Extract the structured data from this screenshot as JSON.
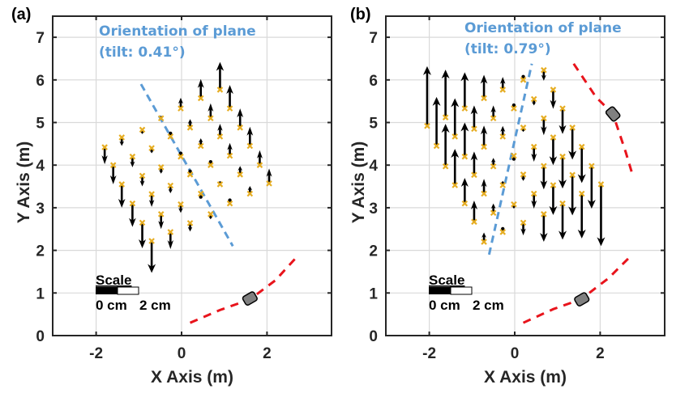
{
  "chart_data": [
    {
      "type": "scatter",
      "panel_label": "(a)",
      "title": "",
      "xlabel": "X Axis  (m)",
      "ylabel": "Y Axis  (m)",
      "xlim": [
        -3,
        3.5
      ],
      "ylim": [
        0,
        7.5
      ],
      "xticks": [
        -2,
        0,
        2
      ],
      "xtick_labels": [
        "-2",
        "0",
        "2"
      ],
      "yticks": [
        0,
        1,
        2,
        3,
        4,
        5,
        6,
        7
      ],
      "ytick_labels": [
        "0",
        "1",
        "2",
        "3",
        "4",
        "5",
        "6",
        "7"
      ],
      "grid": true,
      "annotation": {
        "line1": "Orientation of plane",
        "line2": "(tilt: 0.41°)",
        "color": "#5b9bd5"
      },
      "plane_line": {
        "x": [
          -0.95,
          1.2
        ],
        "y": [
          5.9,
          2.1
        ],
        "color": "#5b9bd5"
      },
      "trajectory": {
        "x": [
          0.2,
          0.9,
          1.6,
          2.2,
          2.7
        ],
        "y": [
          0.3,
          0.6,
          0.85,
          1.3,
          1.85
        ],
        "color": "#e8141c"
      },
      "vehicle": {
        "x": 1.6,
        "y": 0.87,
        "angle_deg": -30
      },
      "scale_bar": {
        "title": "Scale",
        "left_label": "0 cm",
        "right_label": "2 cm"
      },
      "marker_color": "#e6ad22",
      "points": [
        {
          "x": -1.8,
          "y": 4.42,
          "dy": -0.4
        },
        {
          "x": -1.6,
          "y": 4.0,
          "dy": -0.45
        },
        {
          "x": -1.4,
          "y": 3.55,
          "dy": -0.55
        },
        {
          "x": -1.15,
          "y": 3.1,
          "dy": -0.55
        },
        {
          "x": -0.92,
          "y": 2.65,
          "dy": -0.6
        },
        {
          "x": -0.7,
          "y": 2.22,
          "dy": -0.75
        },
        {
          "x": -1.4,
          "y": 4.65,
          "dy": -0.2
        },
        {
          "x": -1.15,
          "y": 4.2,
          "dy": -0.25
        },
        {
          "x": -0.92,
          "y": 3.75,
          "dy": -0.25
        },
        {
          "x": -0.7,
          "y": 3.32,
          "dy": -0.3
        },
        {
          "x": -0.48,
          "y": 2.85,
          "dy": -0.35
        },
        {
          "x": -0.26,
          "y": 2.43,
          "dy": -0.4
        },
        {
          "x": -0.92,
          "y": 4.83,
          "dy": -0.1
        },
        {
          "x": -0.7,
          "y": 4.4,
          "dy": -0.12
        },
        {
          "x": -0.48,
          "y": 3.95,
          "dy": -0.15
        },
        {
          "x": -0.26,
          "y": 3.52,
          "dy": -0.18
        },
        {
          "x": -0.02,
          "y": 3.08,
          "dy": -0.2
        },
        {
          "x": 0.2,
          "y": 2.64,
          "dy": -0.2
        },
        {
          "x": -0.48,
          "y": 5.1,
          "dy": 0.06
        },
        {
          "x": -0.26,
          "y": 4.67,
          "dy": 0.0
        },
        {
          "x": -0.02,
          "y": 4.2,
          "dy": 0.0
        },
        {
          "x": 0.2,
          "y": 3.78,
          "dy": 0.0
        },
        {
          "x": 0.45,
          "y": 3.33,
          "dy": -0.05
        },
        {
          "x": 0.68,
          "y": 2.85,
          "dy": -0.12
        },
        {
          "x": -0.02,
          "y": 5.33,
          "dy": 0.25
        },
        {
          "x": 0.2,
          "y": 4.88,
          "dy": 0.2
        },
        {
          "x": 0.45,
          "y": 4.45,
          "dy": 0.18
        },
        {
          "x": 0.68,
          "y": 4.0,
          "dy": 0.05
        },
        {
          "x": 0.9,
          "y": 3.55,
          "dy": 0.08
        },
        {
          "x": 1.13,
          "y": 3.1,
          "dy": 0.0
        },
        {
          "x": 0.45,
          "y": 5.57,
          "dy": 0.45
        },
        {
          "x": 0.68,
          "y": 5.1,
          "dy": 0.35
        },
        {
          "x": 0.9,
          "y": 4.67,
          "dy": 0.3
        },
        {
          "x": 1.13,
          "y": 4.22,
          "dy": 0.3
        },
        {
          "x": 1.37,
          "y": 3.78,
          "dy": 0.2
        },
        {
          "x": 1.6,
          "y": 3.33,
          "dy": 0.18
        },
        {
          "x": 0.9,
          "y": 5.77,
          "dy": 0.65
        },
        {
          "x": 1.13,
          "y": 5.33,
          "dy": 0.55
        },
        {
          "x": 1.37,
          "y": 4.88,
          "dy": 0.45
        },
        {
          "x": 1.6,
          "y": 4.45,
          "dy": 0.45
        },
        {
          "x": 1.83,
          "y": 4.0,
          "dy": 0.35
        },
        {
          "x": 2.05,
          "y": 3.57,
          "dy": 0.35
        }
      ]
    },
    {
      "type": "scatter",
      "panel_label": "(b)",
      "title": "",
      "xlabel": "X Axis (m)",
      "ylabel": "Y Axis  (m)",
      "xlim": [
        -3,
        3.5
      ],
      "ylim": [
        0,
        7.5
      ],
      "xticks": [
        -2,
        0,
        2
      ],
      "xtick_labels": [
        "-2",
        "0",
        "2"
      ],
      "yticks": [
        0,
        1,
        2,
        3,
        4,
        5,
        6,
        7
      ],
      "ytick_labels": [
        "0",
        "1",
        "2",
        "3",
        "4",
        "5",
        "6",
        "7"
      ],
      "grid": true,
      "annotation": {
        "line1": "Orientation of plane",
        "line2": "(tilt: 0.79°)",
        "color": "#5b9bd5"
      },
      "plane_line": {
        "x": [
          -0.6,
          0.4
        ],
        "y": [
          1.9,
          6.38
        ],
        "color": "#5b9bd5"
      },
      "trajectory_top": {
        "x": [
          1.38,
          1.9,
          2.3,
          2.6,
          2.75
        ],
        "y": [
          6.38,
          5.6,
          5.2,
          4.3,
          3.8
        ],
        "color": "#e8141c"
      },
      "trajectory": {
        "x": [
          0.2,
          0.9,
          1.55,
          2.2,
          2.7
        ],
        "y": [
          0.3,
          0.62,
          0.85,
          1.35,
          1.85
        ],
        "color": "#e8141c"
      },
      "vehicle": {
        "x": 1.57,
        "y": 0.85,
        "angle_deg": -30
      },
      "vehicle_top": {
        "x": 2.3,
        "y": 5.2,
        "angle_deg": 50
      },
      "scale_bar": {
        "title": "Scale",
        "left_label": "0 cm",
        "right_label": "2 cm"
      },
      "marker_color": "#e6ad22",
      "points": [
        {
          "x": -2.05,
          "y": 4.92,
          "dy": 1.4
        },
        {
          "x": -1.83,
          "y": 4.45,
          "dy": 1.15
        },
        {
          "x": -1.62,
          "y": 3.97,
          "dy": 1.0
        },
        {
          "x": -1.4,
          "y": 3.53,
          "dy": 0.85
        },
        {
          "x": -1.17,
          "y": 3.1,
          "dy": 0.6
        },
        {
          "x": -0.95,
          "y": 2.67,
          "dy": 0.5
        },
        {
          "x": -0.72,
          "y": 2.2,
          "dy": 0.22
        },
        {
          "x": -1.62,
          "y": 5.12,
          "dy": 1.12
        },
        {
          "x": -1.4,
          "y": 4.67,
          "dy": 0.9
        },
        {
          "x": -1.17,
          "y": 4.2,
          "dy": 0.8
        },
        {
          "x": -0.95,
          "y": 3.77,
          "dy": 0.55
        },
        {
          "x": -0.72,
          "y": 3.33,
          "dy": 0.35
        },
        {
          "x": -0.5,
          "y": 2.88,
          "dy": 0.22
        },
        {
          "x": -0.28,
          "y": 2.43,
          "dy": 0.0
        },
        {
          "x": -1.17,
          "y": 5.33,
          "dy": 0.85
        },
        {
          "x": -0.95,
          "y": 4.85,
          "dy": 0.55
        },
        {
          "x": -0.72,
          "y": 4.43,
          "dy": 0.5
        },
        {
          "x": -0.5,
          "y": 3.97,
          "dy": 0.2
        },
        {
          "x": -0.28,
          "y": 3.53,
          "dy": 0.1
        },
        {
          "x": -0.02,
          "y": 3.08,
          "dy": -0.1
        },
        {
          "x": 0.2,
          "y": 2.65,
          "dy": -0.3
        },
        {
          "x": -0.72,
          "y": 5.57,
          "dy": 0.55
        },
        {
          "x": -0.5,
          "y": 5.1,
          "dy": 0.3
        },
        {
          "x": -0.28,
          "y": 4.67,
          "dy": 0.25
        },
        {
          "x": -0.02,
          "y": 4.22,
          "dy": -0.05
        },
        {
          "x": 0.2,
          "y": 3.78,
          "dy": -0.15
        },
        {
          "x": 0.45,
          "y": 3.33,
          "dy": -0.35
        },
        {
          "x": 0.68,
          "y": 2.85,
          "dy": -0.65
        },
        {
          "x": -0.28,
          "y": 5.77,
          "dy": 0.3
        },
        {
          "x": -0.02,
          "y": 5.33,
          "dy": 0.0
        },
        {
          "x": 0.2,
          "y": 4.88,
          "dy": -0.1
        },
        {
          "x": 0.45,
          "y": 4.43,
          "dy": -0.35
        },
        {
          "x": 0.68,
          "y": 3.98,
          "dy": -0.55
        },
        {
          "x": 0.9,
          "y": 3.53,
          "dy": -0.7
        },
        {
          "x": 1.12,
          "y": 3.1,
          "dy": -0.85
        },
        {
          "x": 0.2,
          "y": 6.0,
          "dy": 0.0
        },
        {
          "x": 0.45,
          "y": 5.55,
          "dy": -0.15
        },
        {
          "x": 0.68,
          "y": 5.1,
          "dy": -0.4
        },
        {
          "x": 0.9,
          "y": 4.65,
          "dy": -0.65
        },
        {
          "x": 1.12,
          "y": 4.2,
          "dy": -0.75
        },
        {
          "x": 1.35,
          "y": 3.77,
          "dy": -0.95
        },
        {
          "x": 1.57,
          "y": 3.33,
          "dy": -1.05
        },
        {
          "x": 0.68,
          "y": 6.23,
          "dy": -0.25
        },
        {
          "x": 0.9,
          "y": 5.77,
          "dy": -0.45
        },
        {
          "x": 1.12,
          "y": 5.33,
          "dy": -0.6
        },
        {
          "x": 1.35,
          "y": 4.88,
          "dy": -0.75
        },
        {
          "x": 1.57,
          "y": 4.43,
          "dy": -0.85
        },
        {
          "x": 1.8,
          "y": 3.98,
          "dy": -1.0
        },
        {
          "x": 2.02,
          "y": 3.55,
          "dy": -1.45
        }
      ]
    }
  ]
}
